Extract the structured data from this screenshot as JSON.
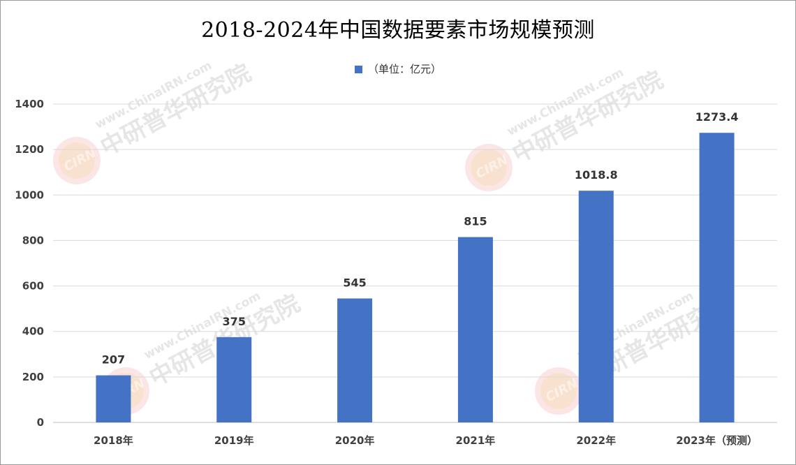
{
  "title": "2018-2024年中国数据要素市场规模预测",
  "legend": {
    "label": "（单位：亿元）"
  },
  "watermark": {
    "site": "www.ChinaIRN.com",
    "cn": "中研普华研究院",
    "logo": "CIRN"
  },
  "colors": {
    "bar": "#4472C4",
    "grid": "#d9d9d9",
    "axis": "#bfbfbf"
  },
  "chart_data": {
    "type": "bar",
    "categories": [
      "2018年",
      "2019年",
      "2020年",
      "2021年",
      "2022年",
      "2023年（预测）"
    ],
    "values": [
      207,
      375,
      545,
      815,
      1018.8,
      1273.4
    ],
    "data_labels": [
      "207",
      "375",
      "545",
      "815",
      "1018.8",
      "1273.4"
    ],
    "ylim": [
      0,
      1400
    ],
    "yticks": [
      "0",
      "200",
      "400",
      "600",
      "800",
      "1000",
      "1200",
      "1400"
    ],
    "grid": true,
    "legend_position": "top"
  }
}
